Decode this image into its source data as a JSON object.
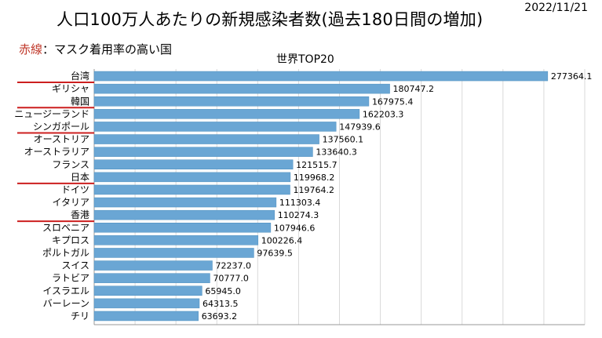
{
  "header": {
    "title": "人口100万人あたりの新規感染者数(過去180日間の増加)",
    "date": "2022/11/21",
    "legend_prefix": "赤線",
    "legend_text": "：マスク着用率の高い国",
    "subtitle": "世界TOP20"
  },
  "colors": {
    "bar": "#6aa6d4",
    "bar_stroke": "#4f8fbf",
    "underline": "#cc1f1f",
    "grid": "#d9d9d9"
  },
  "chart_data": {
    "type": "bar",
    "orientation": "horizontal",
    "title": "世界TOP20",
    "xlim": [
      0,
      300000
    ],
    "grid": true,
    "categories": [
      "台湾",
      "ギリシャ",
      "韓国",
      "ニュージーランド",
      "シンガポール",
      "オーストリア",
      "オーストラリア",
      "フランス",
      "日本",
      "ドイツ",
      "イタリア",
      "香港",
      "スロベニア",
      "キプロス",
      "ポルトガル",
      "スイス",
      "ラトビア",
      "イスラエル",
      "バーレーン",
      "チリ"
    ],
    "values": [
      277364.1,
      180747.2,
      167975.4,
      162203.3,
      147939.6,
      137560.1,
      133640.3,
      121515.7,
      119968.2,
      119764.2,
      111303.4,
      110274.3,
      107946.6,
      100226.4,
      97639.5,
      72237.0,
      70777.0,
      65945.0,
      64313.5,
      63693.2
    ],
    "value_labels": [
      "277364.1",
      "180747.2",
      "167975.4",
      "162203.3",
      "147939.6",
      "137560.1",
      "133640.3",
      "121515.7",
      "119968.2",
      "119764.2",
      "111303.4",
      "110274.3",
      "107946.6",
      "100226.4",
      "97639.5",
      "72237.0",
      "70777.0",
      "65945.0",
      "64313.5",
      "63693.2"
    ],
    "highlighted": [
      "台湾",
      "韓国",
      "シンガポール",
      "日本",
      "香港"
    ]
  }
}
